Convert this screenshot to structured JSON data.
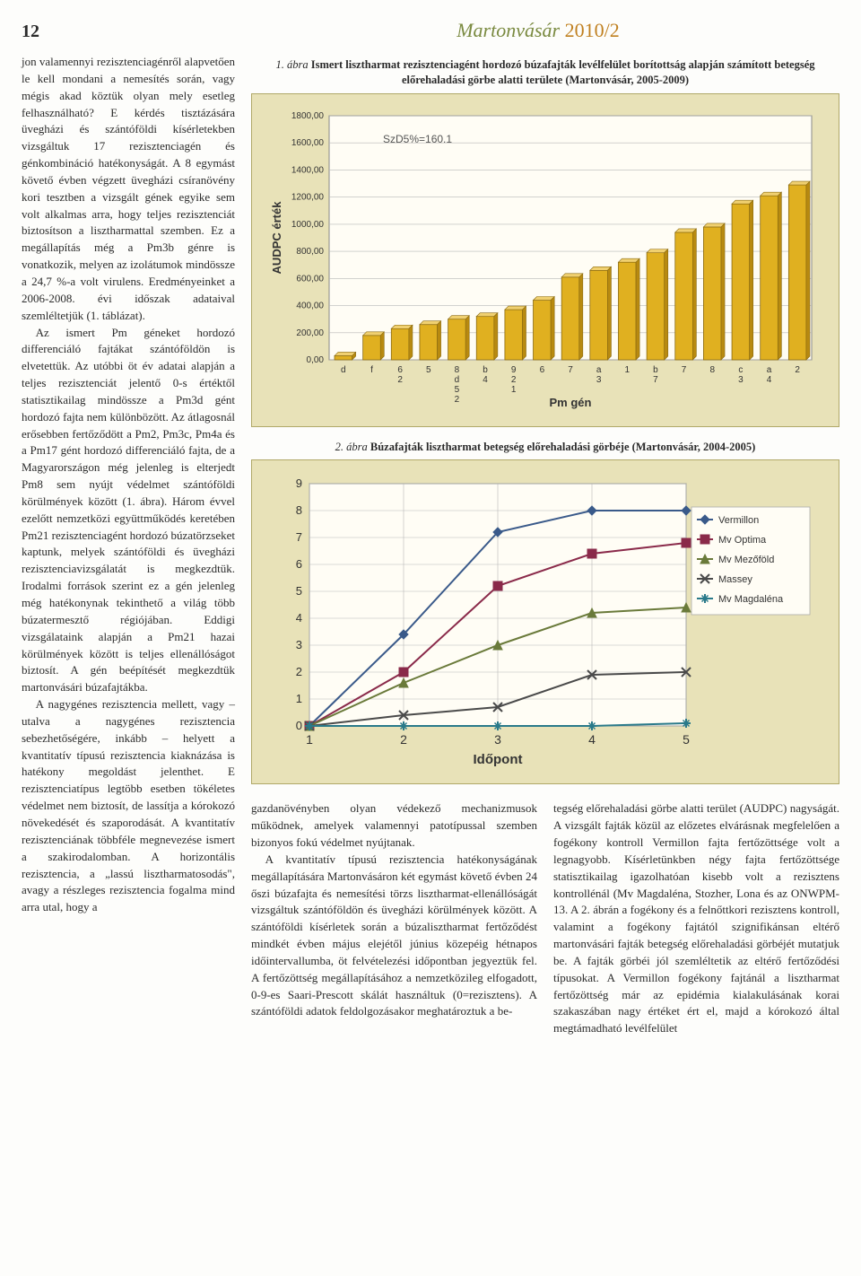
{
  "header": {
    "page_number": "12",
    "journal": "Martonvásár",
    "issue": "2010/2"
  },
  "left_column": {
    "p1": "jon valamennyi rezisztenciagénről alapvetően le kell mondani a nemesítés során, vagy mégis akad köztük olyan mely esetleg felhasználható? E kérdés tisztázására üvegházi és szántóföldi kísérletekben vizsgáltuk 17 rezisztenciagén és génkombináció hatékonyságát. A 8 egymást követő évben végzett üvegházi csíranövény kori tesztben a vizsgált gének egyike sem volt alkalmas arra, hogy teljes rezisztenciát biztosítson a lisztharmattal szemben. Ez a megállapítás még a Pm3b génre is vonatkozik, melyen az izolátumok mindössze a 24,7 %-a volt virulens. Eredményeinket a 2006-2008. évi időszak adataival szemléltetjük (1. táblázat).",
    "p2": "Az ismert Pm géneket hordozó differenciáló fajtákat szántóföldön is elvetettük. Az utóbbi öt év adatai alapján a teljes rezisztenciát jelentő 0-s értéktől statisztikailag mindössze a Pm3d gént hordozó fajta nem különbözött. Az átlagosnál erősebben fertőződött a Pm2, Pm3c, Pm4a és a Pm17 gént hordozó differenciáló fajta, de a Magyarországon még jelenleg is elterjedt Pm8 sem nyújt védelmet szántóföldi körülmények között (1. ábra). Három évvel ezelőtt nemzetközi együttműködés keretében Pm21 rezisztenciagént hordozó búzatörzseket kaptunk, melyek szántóföldi és üvegházi rezisztenciavizsgálatát is megkezdtük. Irodalmi források szerint ez a gén jelenleg még hatékonynak tekinthető a világ több búzatermesztő régiójában. Eddigi vizsgálataink alapján a Pm21 hazai körülmények között is teljes ellenállóságot biztosít. A gén beépítését megkezdtük martonvásári búzafajtákba.",
    "p3": "A nagygénes rezisztencia mellett, vagy – utalva a nagygénes rezisztencia sebezhetőségére, inkább – helyett a kvantitatív típusú rezisztencia kiaknázása is hatékony megoldást jelenthet. E rezisztenciatípus legtöbb esetben tökéletes védelmet nem biztosít, de lassítja a kórokozó növekedését és szaporodását. A kvantitatív rezisztenciának többféle megnevezése ismert a szakirodalomban. A horizontális rezisztencia, a „lassú lisztharmatosodás\", avagy a részleges rezisztencia fogalma mind arra utal, hogy a"
  },
  "figure1": {
    "caption_lead": "1. ábra",
    "caption_bold": " Ismert lisztharmat rezisztenciagént hordozó búzafajták levélfelület borítottság alapján számított betegség előrehaladási görbe alatti területe (Martonvásár, 2005-2009)",
    "type": "bar",
    "y_label": "AUDPC érték",
    "x_label": "Pm gén",
    "szd_label": "SzD5%=160.1",
    "ylim": [
      0,
      1800
    ],
    "ytick_step": 200,
    "yticks": [
      "0,00",
      "200,00",
      "400,00",
      "600,00",
      "800,00",
      "1000,00",
      "1200,00",
      "1400,00",
      "1600,00",
      "1800,00"
    ],
    "categories": [
      "d",
      "f",
      "6 2",
      "5",
      "8 d 5 2",
      "b 4",
      "9 2 1",
      "6",
      "7",
      "a 3",
      "1",
      "b 7",
      "7",
      "8",
      "c 3",
      "a 4",
      "2"
    ],
    "values": [
      30,
      180,
      230,
      260,
      300,
      320,
      370,
      440,
      610,
      660,
      720,
      790,
      940,
      980,
      1150,
      1210,
      1290
    ],
    "bar_color": "#e0b020",
    "bar_border": "#8a6a10",
    "grid_color": "#b8b8b8",
    "plot_bg": "#fffdf5",
    "box_bg": "#e8e2b8",
    "label_fontsize": 10,
    "axis_fontsize": 11
  },
  "figure2": {
    "caption_lead": "2. ábra",
    "caption_bold": " Búzafajták lisztharmat betegség előrehaladási görbéje (Martonvásár, 2004-2005)",
    "type": "line",
    "x_label": "Időpont",
    "ylim": [
      0,
      9
    ],
    "ytick_step": 1,
    "x_ticks": [
      1,
      2,
      3,
      4,
      5
    ],
    "series": [
      {
        "name": "Vermillon",
        "marker": "diamond",
        "color": "#3a5a8a",
        "values": [
          0.0,
          3.4,
          7.2,
          8.0,
          8.0
        ]
      },
      {
        "name": "Mv Optima",
        "marker": "square",
        "color": "#8a2a4a",
        "values": [
          0.0,
          2.0,
          5.2,
          6.4,
          6.8
        ]
      },
      {
        "name": "Mv Mezőföld",
        "marker": "triangle",
        "color": "#6a7a3a",
        "values": [
          0.0,
          1.6,
          3.0,
          4.2,
          4.4
        ]
      },
      {
        "name": "Massey",
        "marker": "x",
        "color": "#4a4a4a",
        "values": [
          0.0,
          0.4,
          0.7,
          1.9,
          2.0
        ]
      },
      {
        "name": "Mv Magdaléna",
        "marker": "star",
        "color": "#2a7a8a",
        "values": [
          0.0,
          0.0,
          0.0,
          0.0,
          0.1
        ]
      }
    ],
    "grid_color": "#b8b8b8",
    "plot_bg": "#fffdf5",
    "box_bg": "#e8e2b8",
    "label_fontsize": 12,
    "legend_fontsize": 11
  },
  "bottom_middle": {
    "p1": "gazdanövényben olyan védekező mechanizmusok működnek, amelyek valamennyi patotípussal szemben bizonyos fokú védelmet nyújtanak.",
    "p2": "A kvantitatív típusú rezisztencia hatékonyságának megállapítására Martonvásáron két egymást követő évben 24 őszi búzafajta és nemesítési törzs lisztharmat-ellenállóságát vizsgáltuk szántóföldön és üvegházi körülmények között. A szántóföldi kísérletek során a búzalisztharmat fertőződést mindkét évben május elejétől június közepéig hétnapos időintervallumba, öt felvételezési időpontban jegyeztük fel. A fertőzöttség megállapításához a nemzetközileg elfogadott, 0-9-es Saari-Prescott skálát használtuk (0=rezisztens). A szántóföldi adatok feldolgozásakor meghatároztuk a be-"
  },
  "bottom_right": {
    "p1": "tegség előrehaladási görbe alatti terület (AUDPC) nagyságát. A vizsgált fajták közül az előzetes elvárásnak megfelelően a fogékony kontroll Vermillon fajta fertőzöttsége volt a legnagyobb. Kísérletünkben négy fajta fertőzöttsége statisztikailag igazolhatóan kisebb volt a rezisztens kontrollénál (Mv Magdaléna, Stozher, Lona és az ONWPM-13. A 2. ábrán a fogékony és a felnőttkori rezisztens kontroll, valamint a fogékony fajtától szignifikánsan eltérő martonvásári fajták betegség előrehaladási görbéjét mutatjuk be. A fajták görbéi jól szemléltetik az eltérő fertőződési típusokat. A Vermillon fogékony fajtánál a lisztharmat fertőzöttség már az epidémia kialakulásának korai szakaszában nagy értéket ért el, majd a kórokozó által megtámadható levélfelület"
  }
}
